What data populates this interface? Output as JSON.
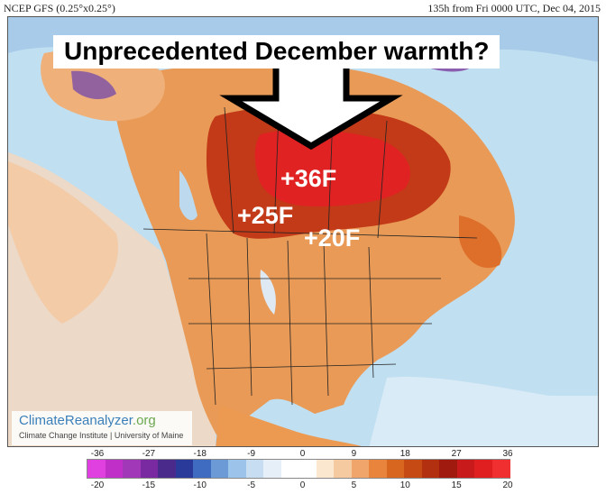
{
  "header": {
    "left": "NCEP GFS (0.25°x0.25°)",
    "right": "135h from Fri 0000 UTC, Dec 04, 2015"
  },
  "title": "Unprecedented December warmth?",
  "annotations": {
    "a1": "+36F",
    "a2": "+25F",
    "a3": "+20F"
  },
  "logo": {
    "brand_part1": "Climate",
    "brand_part2": "Reanalyzer",
    "brand_part3": ".org",
    "subtitle": "Climate Change Institute | University of Maine"
  },
  "legend": {
    "top_ticks": [
      "-36",
      "-27",
      "-18",
      "-9",
      "0",
      "9",
      "18",
      "27",
      "36"
    ],
    "bottom_ticks": [
      "-20",
      "-15",
      "-10",
      "-5",
      "0",
      "5",
      "10",
      "15",
      "20"
    ],
    "colors": [
      "#e040e0",
      "#c030c8",
      "#a038b8",
      "#7a2aa0",
      "#4a2a8a",
      "#2a3a9a",
      "#3f6cc0",
      "#6b9ad6",
      "#9cc3ea",
      "#c6ddf2",
      "#e6eef8",
      "#ffffff",
      "#ffffff",
      "#fbe6cf",
      "#f6caa0",
      "#f0a66a",
      "#e8843c",
      "#d9661f",
      "#c54a14",
      "#b2300f",
      "#a01a10",
      "#c81a1a",
      "#e02020",
      "#f03030"
    ]
  },
  "colors": {
    "ocean": "#bfe0f2",
    "cold": "#9ec8e8",
    "neutral": "#f2e6da",
    "warm_light": "#f6caa0",
    "warm": "#ec9a52",
    "hot": "#cc5a1e",
    "very_hot": "#b02818",
    "extreme": "#e02020",
    "arrow_fill": "#ffffff",
    "arrow_stroke": "#000000"
  }
}
